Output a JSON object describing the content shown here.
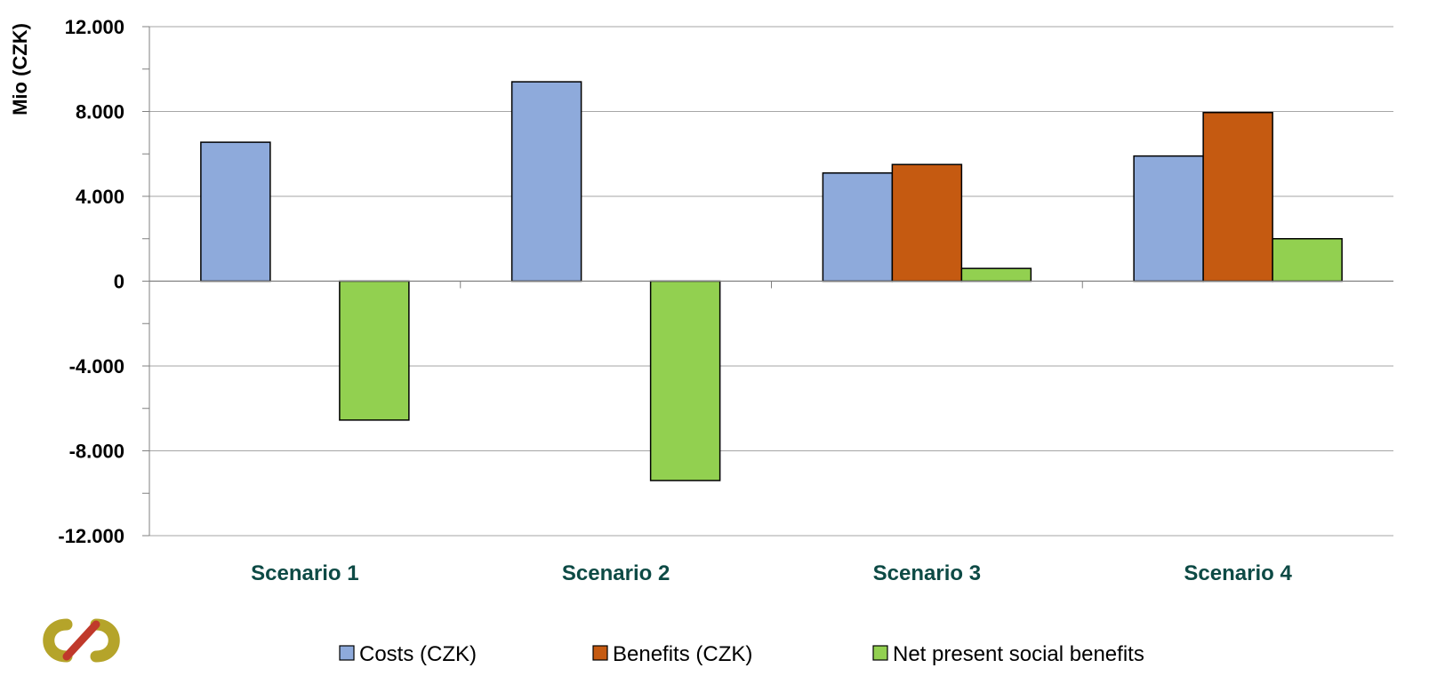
{
  "chart_data": {
    "type": "bar",
    "ylabel": "Mio (CZK)",
    "ylim": [
      -12000,
      12000
    ],
    "yticks": [
      {
        "value": 12000,
        "label": "12.000"
      },
      {
        "value": 8000,
        "label": "8.000"
      },
      {
        "value": 4000,
        "label": "4.000"
      },
      {
        "value": 0,
        "label": "0"
      },
      {
        "value": -4000,
        "label": "-4.000"
      },
      {
        "value": -8000,
        "label": "-8.000"
      },
      {
        "value": -12000,
        "label": "-12.000"
      }
    ],
    "grid": true,
    "legend": "bottom",
    "categories": [
      "Scenario 1",
      "Scenario 2",
      "Scenario 3",
      "Scenario 4"
    ],
    "series": [
      {
        "name": "Costs (CZK)",
        "color": "#8eaadb",
        "values": [
          6550,
          9400,
          5100,
          5900
        ]
      },
      {
        "name": "Benefits (CZK)",
        "color": "#c55a11",
        "values": [
          0,
          0,
          5500,
          7950
        ]
      },
      {
        "name": "Net present social benefits",
        "color": "#92d050",
        "values": [
          -6550,
          -9400,
          600,
          2000
        ]
      }
    ]
  },
  "logo": {
    "name": "logo-icon",
    "colors": [
      "#b5a42a",
      "#c0392b"
    ]
  }
}
